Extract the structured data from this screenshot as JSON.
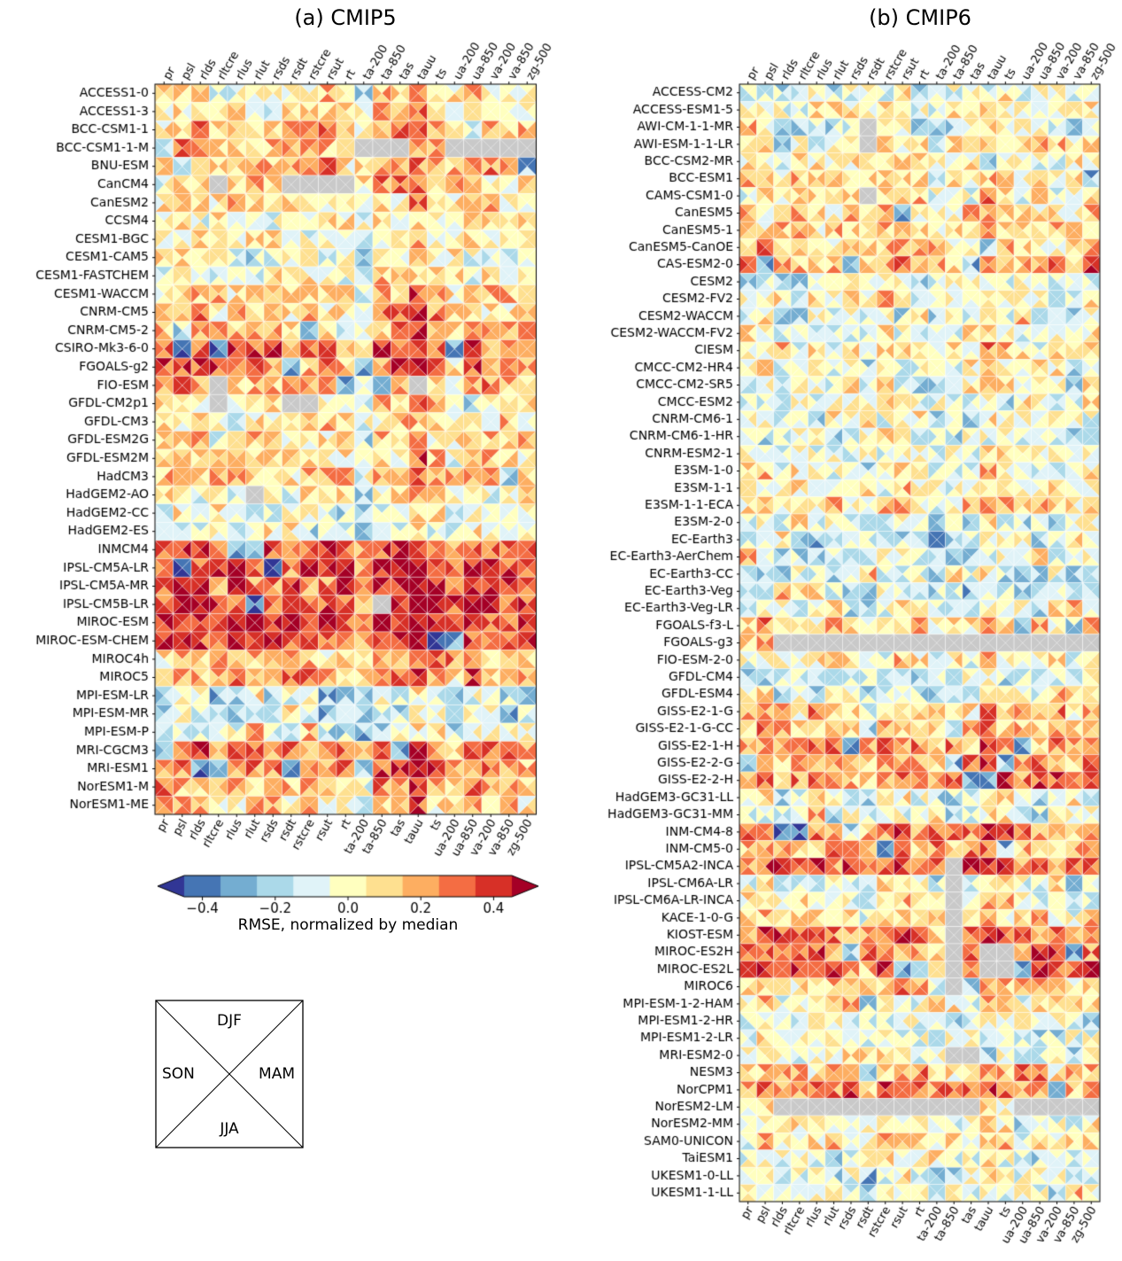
{
  "chart_data": {
    "type": "heatmap",
    "cell_encoding": "each cell is split by its diagonals into 4 seasonal triangles: top=DJF, right=MAM, bottom=JJA, left=SON",
    "value_range": [
      -0.5,
      0.5
    ],
    "noise_seed": 42,
    "variables": [
      "pr",
      "psl",
      "rlds",
      "rltcre",
      "rlus",
      "rlut",
      "rsds",
      "rsdt",
      "rstcre",
      "rsut",
      "rt",
      "ta-200",
      "ta-850",
      "tas",
      "tauu",
      "ts",
      "ua-200",
      "ua-850",
      "va-200",
      "va-850",
      "zg-500"
    ],
    "colormap": {
      "name": "RdYlBu_r",
      "colors": [
        "#313695",
        "#4575b4",
        "#74add1",
        "#abd9e9",
        "#e0f3f8",
        "#ffffbf",
        "#fee090",
        "#fdae61",
        "#f46d43",
        "#d73027",
        "#a50026"
      ],
      "missing_color": "#c9c9c9"
    },
    "column_bias": [
      [
        0.0,
        0.05,
        0.05,
        0.0,
        0.0,
        0.0,
        0.0,
        0.0,
        0.0,
        0.0,
        0.0,
        -0.15,
        0.05,
        0.05,
        0.15,
        0.05,
        -0.05,
        0.05,
        0.0,
        0.0,
        0.0
      ],
      [
        0.0,
        0.05,
        0.0,
        0.0,
        0.0,
        0.0,
        0.0,
        -0.05,
        0.05,
        0.05,
        0.0,
        -0.05,
        0.0,
        0.0,
        0.1,
        0.05,
        0.0,
        0.0,
        0.0,
        -0.05,
        0.05
      ]
    ],
    "panels": [
      {
        "title": "(a) CMIP5",
        "models": [
          "ACCESS1-0",
          "ACCESS1-3",
          "BCC-CSM1-1",
          "BCC-CSM1-1-M",
          "BNU-ESM",
          "CanCM4",
          "CanESM2",
          "CCSM4",
          "CESM1-BGC",
          "CESM1-CAM5",
          "CESM1-FASTCHEM",
          "CESM1-WACCM",
          "CNRM-CM5",
          "CNRM-CM5-2",
          "CSIRO-Mk3-6-0",
          "FGOALS-g2",
          "FIO-ESM",
          "GFDL-CM2p1",
          "GFDL-CM3",
          "GFDL-ESM2G",
          "GFDL-ESM2M",
          "HadCM3",
          "HadGEM2-AO",
          "HadGEM2-CC",
          "HadGEM2-ES",
          "INMCM4",
          "IPSL-CM5A-LR",
          "IPSL-CM5A-MR",
          "IPSL-CM5B-LR",
          "MIROC-ESM",
          "MIROC-ESM-CHEM",
          "MIROC4h",
          "MIROC5",
          "MPI-ESM-LR",
          "MPI-ESM-MR",
          "MPI-ESM-P",
          "MRI-CGCM3",
          "MRI-ESM1",
          "NorESM1-M",
          "NorESM1-ME"
        ],
        "row_bias": [
          0.05,
          0.05,
          0.15,
          0.15,
          0.15,
          0.1,
          0.1,
          0.0,
          0.0,
          -0.05,
          0.0,
          0.1,
          0.15,
          0.15,
          0.3,
          0.25,
          0.2,
          0.05,
          0.05,
          0.1,
          0.1,
          0.15,
          0.0,
          -0.05,
          -0.05,
          0.3,
          0.35,
          0.35,
          0.38,
          0.38,
          0.35,
          0.15,
          0.2,
          -0.15,
          -0.15,
          -0.1,
          0.25,
          0.25,
          0.15,
          0.1
        ],
        "missing": {
          "BCC-CSM1-1-M": [
            "ta-200",
            "ta-850",
            "tas",
            "ua-200",
            "ua-850",
            "va-200",
            "va-850",
            "zg-500"
          ],
          "CanCM4": [
            "rltcre",
            "rsdt",
            "rstcre",
            "rsut",
            "rt"
          ],
          "FIO-ESM": [
            "rltcre",
            "tauu"
          ],
          "GFDL-CM2p1": [
            "rltcre",
            "rsdt",
            "rstcre"
          ],
          "HadGEM2-AO": [
            "rlut"
          ],
          "IPSL-CM5B-LR": [
            "ta-850"
          ]
        }
      },
      {
        "title": "(b) CMIP6",
        "models": [
          "ACCESS-CM2",
          "ACCESS-ESM1-5",
          "AWI-CM-1-1-MR",
          "AWI-ESM-1-1-LR",
          "BCC-CSM2-MR",
          "BCC-ESM1",
          "CAMS-CSM1-0",
          "CanESM5",
          "CanESM5-1",
          "CanESM5-CanOE",
          "CAS-ESM2-0",
          "CESM2",
          "CESM2-FV2",
          "CESM2-WACCM",
          "CESM2-WACCM-FV2",
          "CIESM",
          "CMCC-CM2-HR4",
          "CMCC-CM2-SR5",
          "CMCC-ESM2",
          "CNRM-CM6-1",
          "CNRM-CM6-1-HR",
          "CNRM-ESM2-1",
          "E3SM-1-0",
          "E3SM-1-1",
          "E3SM-1-1-ECA",
          "E3SM-2-0",
          "EC-Earth3",
          "EC-Earth3-AerChem",
          "EC-Earth3-CC",
          "EC-Earth3-Veg",
          "EC-Earth3-Veg-LR",
          "FGOALS-f3-L",
          "FGOALS-g3",
          "FIO-ESM-2-0",
          "GFDL-CM4",
          "GFDL-ESM4",
          "GISS-E2-1-G",
          "GISS-E2-1-G-CC",
          "GISS-E2-1-H",
          "GISS-E2-2-G",
          "GISS-E2-2-H",
          "HadGEM3-GC31-LL",
          "HadGEM3-GC31-MM",
          "INM-CM4-8",
          "INM-CM5-0",
          "IPSL-CM5A2-INCA",
          "IPSL-CM6A-LR",
          "IPSL-CM6A-LR-INCA",
          "KACE-1-0-G",
          "KIOST-ESM",
          "MIROC-ES2H",
          "MIROC-ES2L",
          "MIROC6",
          "MPI-ESM-1-2-HAM",
          "MPI-ESM1-2-HR",
          "MPI-ESM1-2-LR",
          "MRI-ESM2-0",
          "NESM3",
          "NorCPM1",
          "NorESM2-LM",
          "NorESM2-MM",
          "SAM0-UNICON",
          "TaiESM1",
          "UKESM1-0-LL",
          "UKESM1-1-LL"
        ],
        "row_bias": [
          -0.05,
          0.0,
          -0.1,
          0.05,
          0.0,
          0.1,
          0.05,
          0.1,
          0.1,
          0.1,
          0.2,
          -0.1,
          0.0,
          -0.1,
          0.0,
          0.05,
          0.0,
          -0.05,
          -0.05,
          -0.05,
          -0.1,
          0.0,
          0.0,
          0.0,
          0.05,
          -0.05,
          -0.15,
          -0.15,
          -0.15,
          -0.15,
          -0.1,
          0.1,
          0.1,
          0.0,
          -0.15,
          -0.1,
          0.15,
          0.15,
          0.2,
          0.2,
          0.25,
          -0.1,
          -0.1,
          0.25,
          0.2,
          0.3,
          -0.05,
          0.0,
          0.05,
          0.25,
          0.25,
          0.3,
          0.1,
          0.05,
          -0.1,
          -0.05,
          0.0,
          0.15,
          0.25,
          0.0,
          -0.05,
          0.05,
          -0.05,
          -0.1,
          -0.1
        ],
        "missing": {
          "AWI-CM-1-1-MR": [
            "rsdt"
          ],
          "AWI-ESM-1-1-LR": [
            "rsdt"
          ],
          "CAMS-CSM1-0": [
            "rsdt"
          ],
          "FGOALS-g3": [
            "rlds",
            "rltcre",
            "rlus",
            "rlut",
            "rsds",
            "rsdt",
            "rstcre",
            "rsut",
            "rt",
            "ta-200",
            "ta-850",
            "tas",
            "tauu",
            "ts",
            "ua-200",
            "ua-850",
            "va-200",
            "va-850",
            "zg-500"
          ],
          "NorESM2-LM": [
            "rlds",
            "rltcre",
            "rlus",
            "rlut",
            "rsds",
            "rsdt",
            "rstcre",
            "rsut",
            "rt",
            "ta-200",
            "ta-850",
            "tas",
            "ua-200",
            "ua-850",
            "va-200",
            "va-850",
            "zg-500"
          ],
          "IPSL-CM5A2-INCA": [
            "ta-850"
          ],
          "IPSL-CM6A-LR": [
            "ta-850"
          ],
          "IPSL-CM6A-LR-INCA": [
            "ta-850"
          ],
          "KACE-1-0-G": [
            "ta-850"
          ],
          "KIOST-ESM": [
            "ta-850"
          ],
          "MIROC-ES2H": [
            "ta-850",
            "tauu",
            "ts"
          ],
          "MIROC-ES2L": [
            "ta-850",
            "tauu",
            "ts"
          ],
          "MIROC6": [
            "ta-850"
          ],
          "MRI-ESM2-0": [
            "ta-850",
            "tas"
          ]
        }
      }
    ]
  },
  "colorbar": {
    "label": "RMSE, normalized by median",
    "ticks": [
      "−0.4",
      "−0.2",
      "0.0",
      "0.2",
      "0.4"
    ],
    "tick_values": [
      -0.4,
      -0.2,
      0.0,
      0.2,
      0.4
    ]
  },
  "legend": {
    "seasons": {
      "top": "DJF",
      "right": "MAM",
      "bottom": "JJA",
      "left": "SON"
    }
  }
}
